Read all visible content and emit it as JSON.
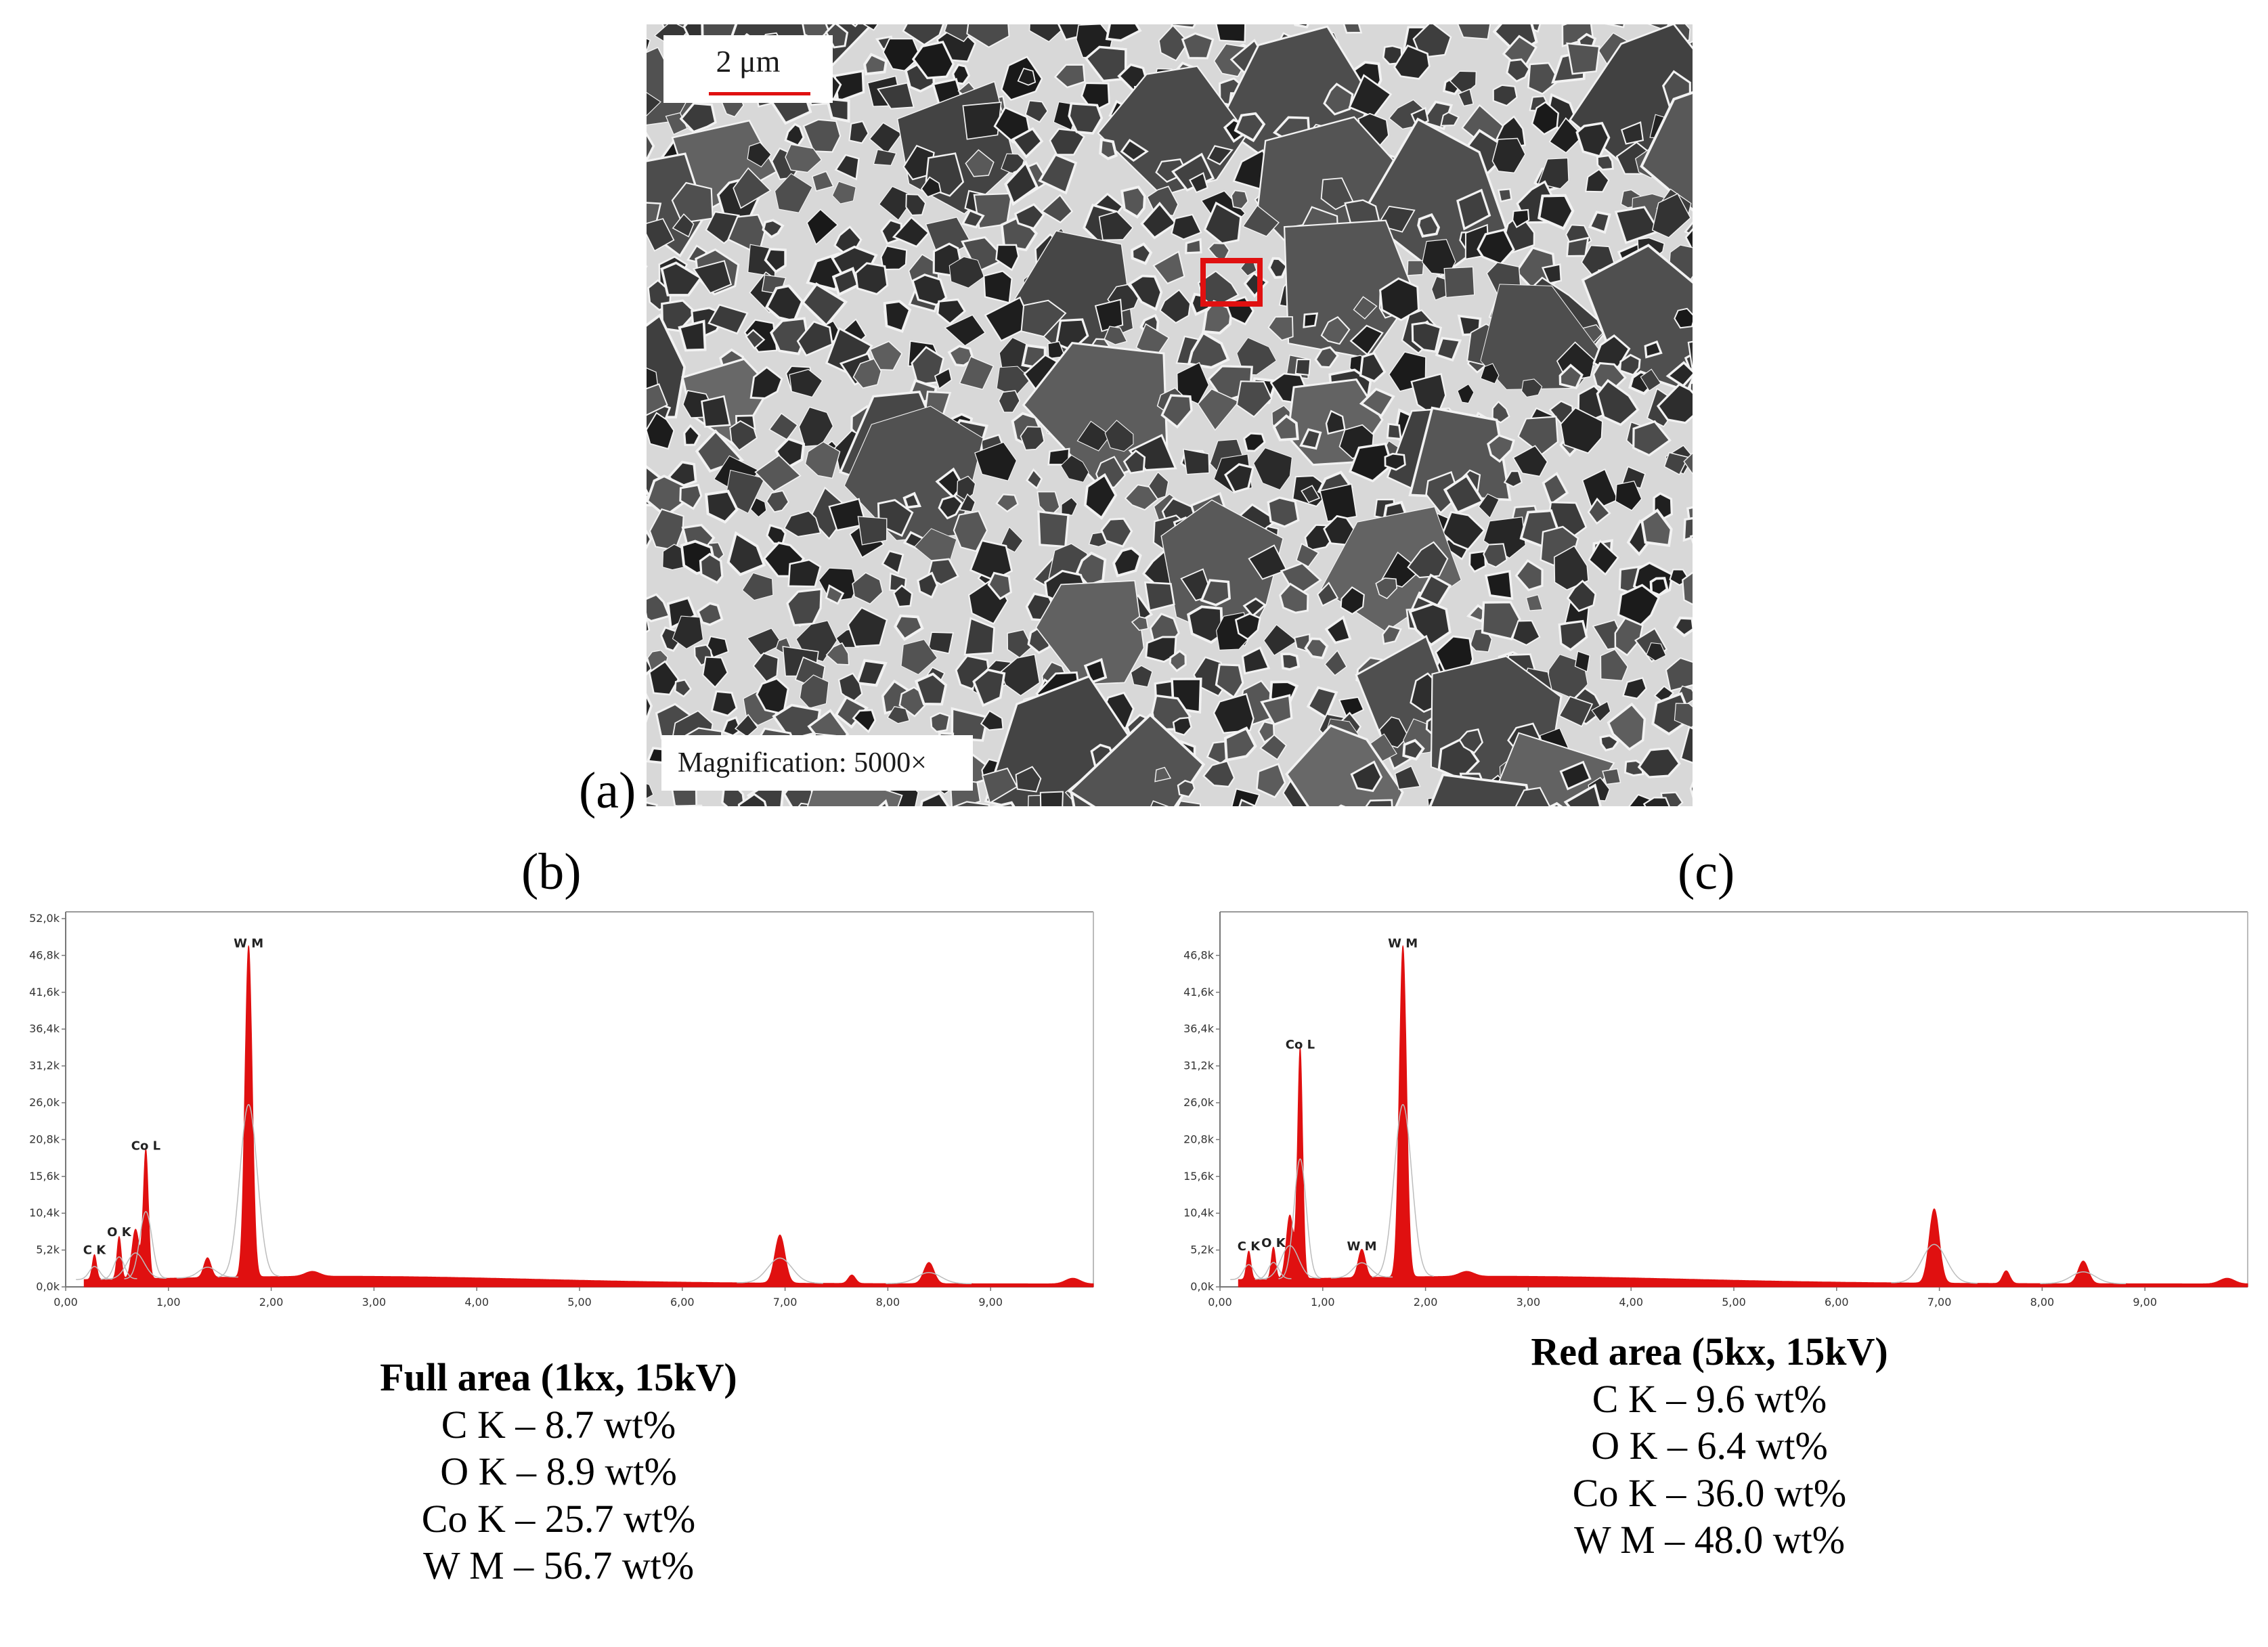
{
  "panels": {
    "a": {
      "label": "(a)",
      "scale_bar": "2 μm",
      "magnification": "Magnification: 5000×"
    },
    "b": {
      "label": "(b)"
    },
    "c": {
      "label": "(c)"
    }
  },
  "colors": {
    "spectrum_fill": "#e01010",
    "fit_line": "#bdbdbd",
    "axis": "#777777",
    "red_box": "#e01010"
  },
  "chart_data": [
    {
      "type": "area",
      "panel": "b",
      "title": "",
      "xlabel": "",
      "ylabel": "",
      "xlim": [
        0,
        10.0
      ],
      "ylim": [
        0,
        52.0
      ],
      "x_ticks": [
        "0,00",
        "1,00",
        "2,00",
        "3,00",
        "4,00",
        "5,00",
        "6,00",
        "7,00",
        "8,00",
        "9,00"
      ],
      "y_ticks": [
        "0,0k",
        "5,2k",
        "10,4k",
        "15,6k",
        "20,8k",
        "26,0k",
        "31,2k",
        "36,4k",
        "41,6k",
        "46,8k",
        "52,0k"
      ],
      "peaks": [
        {
          "label": "C K",
          "x": 0.28,
          "y": 3.5,
          "w": 0.03
        },
        {
          "label": "O K",
          "x": 0.52,
          "y": 6.0,
          "w": 0.03
        },
        {
          "label": "",
          "x": 0.68,
          "y": 7.0,
          "w": 0.05
        },
        {
          "label": "Co L",
          "x": 0.78,
          "y": 18.2,
          "w": 0.035
        },
        {
          "label": "",
          "x": 1.38,
          "y": 2.8,
          "w": 0.05
        },
        {
          "label": "W M",
          "x": 1.78,
          "y": 46.8,
          "w": 0.05
        },
        {
          "label": "",
          "x": 2.4,
          "y": 0.7,
          "w": 0.1
        },
        {
          "label": "",
          "x": 6.95,
          "y": 6.8,
          "w": 0.07
        },
        {
          "label": "",
          "x": 7.65,
          "y": 1.2,
          "w": 0.05
        },
        {
          "label": "",
          "x": 8.4,
          "y": 3.0,
          "w": 0.07
        },
        {
          "label": "",
          "x": 9.8,
          "y": 0.8,
          "w": 0.1
        }
      ],
      "caption": {
        "title": "Full area (1kx, 15kV)",
        "lines": [
          "C K – 8.7 wt%",
          "O K – 8.9 wt%",
          "Co K – 25.7 wt%",
          "W M – 56.7 wt%"
        ]
      }
    },
    {
      "type": "area",
      "panel": "c",
      "title": "",
      "xlabel": "",
      "ylabel": "",
      "xlim": [
        0,
        10.0
      ],
      "ylim": [
        0,
        52.0
      ],
      "x_ticks": [
        "0,00",
        "1,00",
        "2,00",
        "3,00",
        "4,00",
        "5,00",
        "6,00",
        "7,00",
        "8,00",
        "9,00"
      ],
      "y_ticks": [
        "0,0k",
        "5,2k",
        "10,4k",
        "15,6k",
        "20,8k",
        "26,0k",
        "31,2k",
        "36,4k",
        "41,6k",
        "46,8k"
      ],
      "peaks": [
        {
          "label": "C K",
          "x": 0.28,
          "y": 4.0,
          "w": 0.03
        },
        {
          "label": "O K",
          "x": 0.52,
          "y": 4.5,
          "w": 0.03
        },
        {
          "label": "",
          "x": 0.68,
          "y": 9.0,
          "w": 0.05
        },
        {
          "label": "Co L",
          "x": 0.78,
          "y": 32.5,
          "w": 0.035
        },
        {
          "label": "W M",
          "x": 1.38,
          "y": 4.0,
          "w": 0.05
        },
        {
          "label": "W M",
          "x": 1.78,
          "y": 46.8,
          "w": 0.05
        },
        {
          "label": "",
          "x": 2.4,
          "y": 0.7,
          "w": 0.1
        },
        {
          "label": "",
          "x": 6.95,
          "y": 10.5,
          "w": 0.07
        },
        {
          "label": "",
          "x": 7.65,
          "y": 1.8,
          "w": 0.05
        },
        {
          "label": "",
          "x": 8.4,
          "y": 3.2,
          "w": 0.07
        },
        {
          "label": "",
          "x": 9.8,
          "y": 0.8,
          "w": 0.1
        }
      ],
      "caption": {
        "title": "Red area (5kx, 15kV)",
        "lines": [
          "C K – 9.6 wt%",
          "O K – 6.4 wt%",
          "Co K – 36.0 wt%",
          "W M – 48.0 wt%"
        ]
      }
    }
  ]
}
